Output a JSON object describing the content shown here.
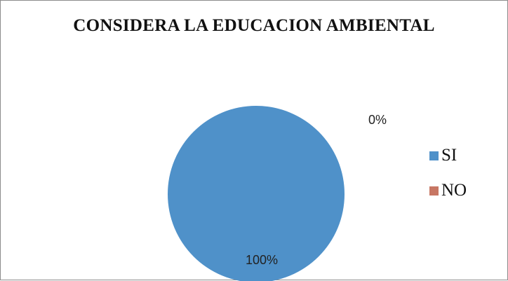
{
  "chart_data": {
    "type": "pie",
    "title": "CONSIDERA LA EDUCACION AMBIENTAL",
    "categories": [
      "SI",
      "NO"
    ],
    "values": [
      100,
      0
    ],
    "colors": [
      "#4f91c9",
      "#c77663"
    ],
    "data_labels": [
      "100%",
      "0%"
    ],
    "legend": "right"
  }
}
